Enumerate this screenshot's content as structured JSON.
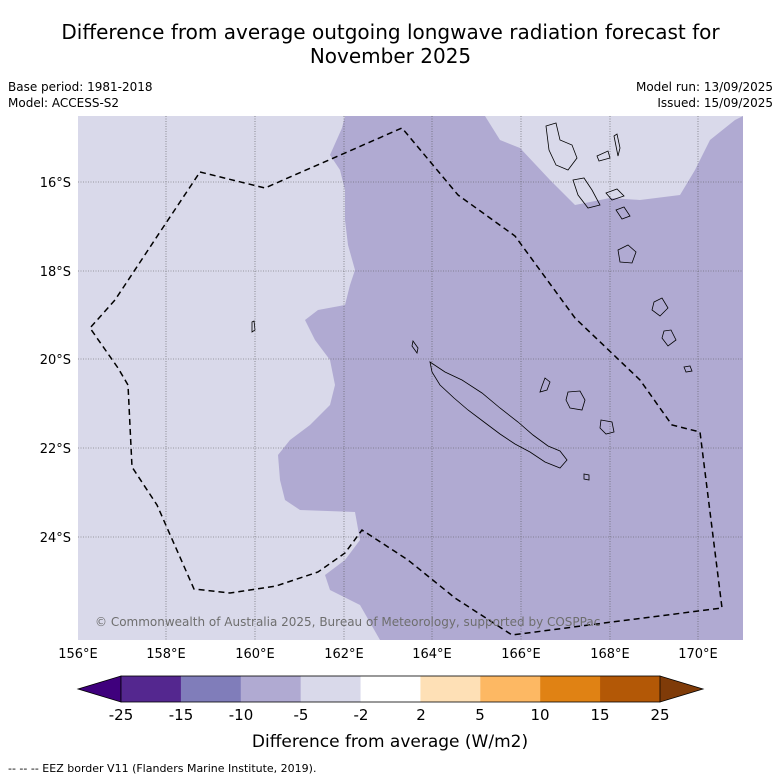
{
  "title_line1": "Difference from average outgoing longwave radiation forecast for",
  "title_line2": "November 2025",
  "base_period": "Base period: 1981-2018",
  "model": "Model: ACCESS-S2",
  "model_run": "Model run: 13/09/2025",
  "issued": "Issued: 15/09/2025",
  "copyright": "© Commonwealth of Australia 2025, Bureau of Meteorology, supported by COSPPac",
  "lat_labels": [
    "16°S",
    "18°S",
    "20°S",
    "22°S",
    "24°S"
  ],
  "lon_labels": [
    "156°E",
    "158°E",
    "160°E",
    "162°E",
    "164°E",
    "166°E",
    "168°E",
    "170°E"
  ],
  "colorbar": {
    "title": "Difference from average (W/m2)",
    "ticks": [
      "-25",
      "-15",
      "-10",
      "-5",
      "-2",
      "2",
      "5",
      "10",
      "15",
      "25"
    ],
    "colors": [
      "#3f007d",
      "#54278f",
      "#807dba",
      "#b0aad2",
      "#d9d9ea",
      "#ffffff",
      "#fee0b6",
      "#fdb863",
      "#e08214",
      "#b35806",
      "#7f3b08"
    ]
  },
  "footer": "--  --  -- EEZ border V11 (Flanders Marine Institute, 2019)."
}
